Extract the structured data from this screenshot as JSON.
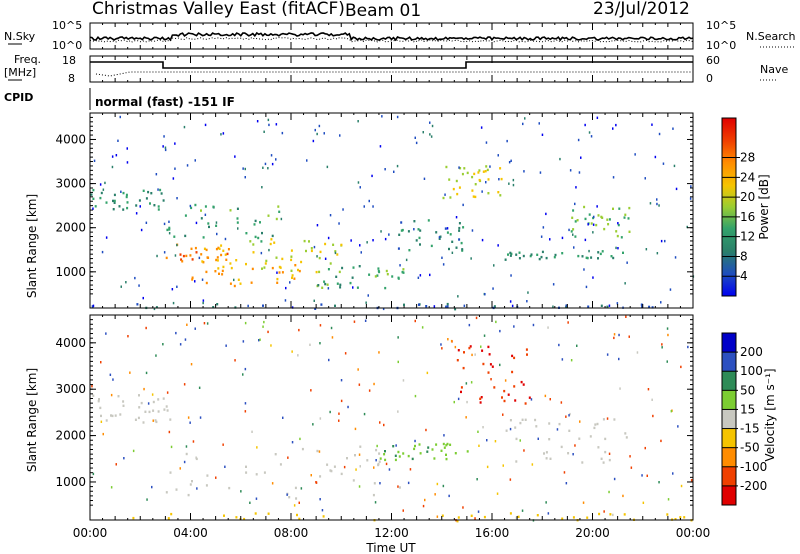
{
  "header": {
    "title": "Christmas Valley East (fitACF)",
    "beam": "Beam 01",
    "date": "23/Jul/2012"
  },
  "panels": {
    "nsky_label": "N.Sky",
    "nsearch_label": "N.Search",
    "freq_label_1": "Freq.",
    "freq_label_2": "[MHz]",
    "nave_label": "Nave",
    "cpid_label": "CPID",
    "cpid_text": "normal (fast) -151 IF",
    "nsky_ticks": [
      "10^5",
      "10^0"
    ],
    "nsearch_ticks": [
      "10^5",
      "10^0"
    ],
    "freq_ticks": [
      "18",
      "8"
    ],
    "nave_ticks": [
      "60",
      "0"
    ]
  },
  "chart_data": [
    {
      "type": "heatmap",
      "name": "power",
      "ylabel": "Slant Range [km]",
      "xlabel": "Time UT",
      "xlim": [
        0,
        24
      ],
      "ylim": [
        180,
        4600
      ],
      "x_ticks": [
        "00:00",
        "04:00",
        "08:00",
        "12:00",
        "16:00",
        "20:00",
        "00:00"
      ],
      "y_ticks": [
        1000,
        2000,
        3000,
        4000
      ],
      "colorbar": {
        "label": "Power [dB]",
        "ticks": [
          4,
          8,
          12,
          16,
          20,
          24,
          28
        ],
        "colors": [
          "#0000f0",
          "#1e4cc0",
          "#2a7f6a",
          "#33a36b",
          "#9acd32",
          "#f5c400",
          "#ff8c00",
          "#f04000",
          "#e00000"
        ]
      },
      "features": [
        {
          "t0": 3.0,
          "t1": 5.5,
          "r0": 1200,
          "r1": 1700,
          "level": 26
        },
        {
          "t0": 4.0,
          "t1": 9.0,
          "r0": 700,
          "r1": 1300,
          "level": 24
        },
        {
          "t0": 6.0,
          "t1": 10.0,
          "r0": 1000,
          "r1": 1800,
          "level": 20
        },
        {
          "t0": 9.0,
          "t1": 12.5,
          "r0": 650,
          "r1": 1200,
          "level": 14
        },
        {
          "t0": 0.0,
          "t1": 3.0,
          "r0": 2400,
          "r1": 2900,
          "level": 12
        },
        {
          "t0": 3.0,
          "t1": 7.5,
          "r0": 1700,
          "r1": 2600,
          "level": 14
        },
        {
          "t0": 12.0,
          "t1": 15.0,
          "r0": 1500,
          "r1": 2200,
          "level": 10
        },
        {
          "t0": 14.0,
          "t1": 16.5,
          "r0": 2700,
          "r1": 3500,
          "level": 20
        },
        {
          "t0": 16.5,
          "t1": 21.5,
          "r0": 1300,
          "r1": 1500,
          "level": 12
        },
        {
          "t0": 19.0,
          "t1": 21.5,
          "r0": 1800,
          "r1": 2500,
          "level": 16
        },
        {
          "t0": 0.0,
          "t1": 24.0,
          "r0": 180,
          "r1": 300,
          "level": 8
        }
      ]
    },
    {
      "type": "heatmap",
      "name": "velocity",
      "ylabel": "Slant Range [km]",
      "xlabel": "Time UT",
      "xlim": [
        0,
        24
      ],
      "ylim": [
        180,
        4600
      ],
      "x_ticks": [
        "00:00",
        "04:00",
        "08:00",
        "12:00",
        "16:00",
        "20:00",
        "00:00"
      ],
      "y_ticks": [
        1000,
        2000,
        3000,
        4000
      ],
      "colorbar": {
        "label": "Velocity [m s⁻¹]",
        "ticks": [
          "200",
          "100",
          "50",
          "15",
          "-15",
          "-50",
          "-100",
          "-200"
        ],
        "colors": [
          "#0000c8",
          "#2c50c0",
          "#2e8b57",
          "#7ccd32",
          "#c8c8c0",
          "#f5c400",
          "#ff8c00",
          "#f04000",
          "#e00000"
        ]
      },
      "features": [
        {
          "t0": 3.0,
          "t1": 12.5,
          "r0": 650,
          "r1": 1800,
          "level": 0
        },
        {
          "t0": 0.0,
          "t1": 3.5,
          "r0": 2300,
          "r1": 2900,
          "level": 0
        },
        {
          "t0": 11.5,
          "t1": 15.0,
          "r0": 1500,
          "r1": 1850,
          "level": 40
        },
        {
          "t0": 14.5,
          "t1": 17.5,
          "r0": 2700,
          "r1": 4000,
          "level": -200
        },
        {
          "t0": 16.5,
          "t1": 21.5,
          "r0": 1400,
          "r1": 2400,
          "level": 0
        },
        {
          "t0": 0.0,
          "t1": 24.0,
          "r0": 180,
          "r1": 350,
          "level": -30
        }
      ]
    }
  ]
}
